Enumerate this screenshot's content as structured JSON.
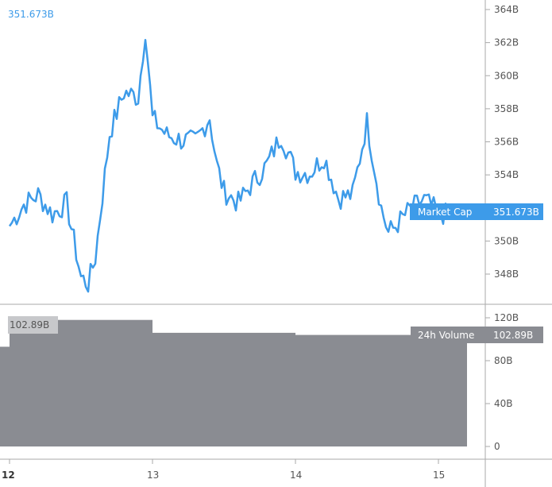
{
  "chart_data": [
    {
      "type": "line",
      "series": [
        {
          "name": "Market Cap",
          "color": "#3d9be9"
        }
      ],
      "x": [
        "12.0",
        "12.1",
        "12.2",
        "12.3",
        "12.4",
        "12.5",
        "12.55",
        "12.6",
        "12.7",
        "12.8",
        "12.9",
        "12.95",
        "13.0",
        "13.1",
        "13.2",
        "13.3",
        "13.4",
        "13.45",
        "13.5",
        "13.6",
        "13.7",
        "13.8",
        "13.9",
        "14.0",
        "14.1",
        "14.2",
        "14.3",
        "14.4",
        "14.5",
        "14.6",
        "14.65",
        "14.7",
        "14.8",
        "14.9",
        "15.0",
        "15.1",
        "15.2"
      ],
      "x_days": [
        12.0,
        12.1,
        12.2,
        12.3,
        12.4,
        12.5,
        12.55,
        12.6,
        12.7,
        12.8,
        12.9,
        12.95,
        13.0,
        13.1,
        13.2,
        13.3,
        13.4,
        13.45,
        13.5,
        13.6,
        13.7,
        13.8,
        13.9,
        14.0,
        14.1,
        14.2,
        14.3,
        14.4,
        14.5,
        14.6,
        14.65,
        14.7,
        14.8,
        14.9,
        15.0,
        15.1,
        15.2
      ],
      "values": [
        350.9,
        352.2,
        352.8,
        351.6,
        352.3,
        347.8,
        347.4,
        349.0,
        356.5,
        359.0,
        358.7,
        362.8,
        357.4,
        356.4,
        356.1,
        356.0,
        357.5,
        354.6,
        353.0,
        352.3,
        353.5,
        354.6,
        356.4,
        354.2,
        354.1,
        355.1,
        352.6,
        352.8,
        357.2,
        352.0,
        350.5,
        350.9,
        351.9,
        352.5,
        351.7,
        351.5,
        351.6
      ],
      "yticks": [
        "364B",
        "362B",
        "360B",
        "358B",
        "356B",
        "354B",
        "352B",
        "350B",
        "348B"
      ],
      "ytick_values": [
        364,
        362,
        360,
        358,
        356,
        354,
        352,
        350,
        348
      ],
      "ylim": [
        346.5,
        364.5
      ],
      "current_value": 351.673,
      "current_label": "351.673B",
      "legend_label": "Market Cap"
    },
    {
      "type": "bar",
      "series": [
        {
          "name": "24h Volume",
          "color": "#8a8c92"
        }
      ],
      "x_days": [
        [
          11.9,
          12.0
        ],
        [
          12.0,
          13.0
        ],
        [
          13.0,
          14.0
        ],
        [
          14.0,
          15.2
        ]
      ],
      "values": [
        93,
        118,
        106,
        104
      ],
      "yticks": [
        "120B",
        "80B",
        "40B",
        "0"
      ],
      "ytick_values": [
        120,
        80,
        40,
        0
      ],
      "ylim": [
        0,
        125
      ],
      "current_value": 102.89,
      "current_label": "102.89B",
      "legend_label": "24h Volume"
    }
  ],
  "x_axis": {
    "ticks": [
      "12",
      "13",
      "14",
      "15"
    ],
    "tick_days": [
      12,
      13,
      14,
      15
    ]
  },
  "colors": {
    "line": "#3d9be9",
    "volume": "#8a8c92",
    "volume_label_bg": "#c7c8cb",
    "axis": "#aaaaaa"
  }
}
